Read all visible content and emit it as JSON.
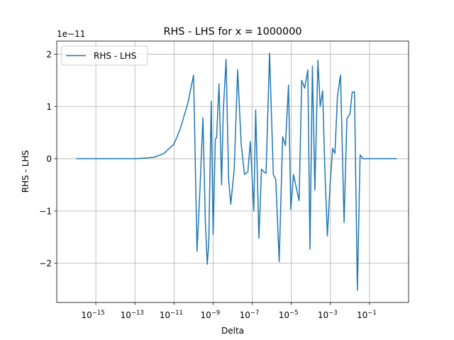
{
  "chart_data": {
    "type": "line",
    "title": "RHS - LHS for x = 1000000",
    "xlabel": "Delta",
    "ylabel": "RHS - LHS",
    "y_offset_label": "1e−11",
    "x_scale": "log",
    "xlim": [
      1e-17,
      10
    ],
    "ylim": [
      -2.75,
      2.25
    ],
    "y_multiplier": 1e-11,
    "grid": true,
    "legend_position": "upper-left",
    "series": [
      {
        "name": "RHS - LHS",
        "color": "#1f77b4",
        "x": [
          1e-16,
          1e-15,
          1e-14,
          1e-13,
          3e-13,
          1e-12,
          3e-12,
          1e-11,
          2e-11,
          5e-11,
          1e-10,
          1.5e-10,
          2e-10,
          3e-10,
          4e-10,
          5e-10,
          6e-10,
          8e-10,
          1e-09,
          1.3e-09,
          1.5e-09,
          2e-09,
          2.7e-09,
          3.3e-09,
          4.6e-09,
          6.2e-09,
          8e-09,
          1.2e-08,
          1.8e-08,
          2.7e-08,
          4e-08,
          6e-08,
          8e-08,
          1.2e-07,
          1.5e-07,
          2.2e-07,
          3e-07,
          3.9e-07,
          5.1e-07,
          7.7e-07,
          1.2e-06,
          1.6e-06,
          2.4e-06,
          3.6e-06,
          5e-06,
          7.2e-06,
          9.4e-06,
          1.3e-05,
          1.9e-05,
          2.5e-05,
          3.4e-05,
          4.8e-05,
          7e-05,
          9e-05,
          0.00012,
          0.00016,
          0.00023,
          0.0003,
          0.0004,
          0.00052,
          0.0007,
          0.00096,
          0.0013,
          0.0017,
          0.0023,
          0.0033,
          0.005,
          0.007,
          0.01,
          0.013,
          0.017,
          0.024,
          0.033,
          0.047,
          0.067,
          0.1,
          0.15,
          0.2,
          0.3,
          0.5,
          0.7,
          1.1,
          1.6,
          2.5
        ],
        "y": [
          0,
          0,
          0,
          0,
          0.01,
          0.03,
          0.1,
          0.28,
          0.55,
          1.05,
          1.6,
          -1.77,
          -0.8,
          0.78,
          -1.2,
          -2.02,
          -1.6,
          1.1,
          -1.45,
          0.38,
          0.4,
          1.43,
          -0.5,
          0.9,
          1.9,
          -0.4,
          -0.87,
          -0.2,
          1.7,
          0.3,
          -0.3,
          -0.25,
          0.33,
          -1.0,
          0.93,
          -1.52,
          -0.2,
          -0.25,
          -0.28,
          2.02,
          -0.3,
          -0.4,
          -1.97,
          0.42,
          0.25,
          1.41,
          -0.97,
          -0.3,
          -0.6,
          -0.8,
          1.5,
          1.35,
          1.7,
          -1.73,
          1.77,
          -0.6,
          1.88,
          1.0,
          1.3,
          -0.2,
          -1.48,
          -0.5,
          0.2,
          0.1,
          1.2,
          1.6,
          -1.22,
          0.77,
          0.85,
          1.27,
          1.28,
          -2.52,
          0.07,
          0.0,
          0.0,
          0.0,
          0.0,
          0.0,
          0.0,
          0.0,
          0.0,
          0.0,
          0.0,
          0.0
        ]
      }
    ],
    "x_ticks": [
      {
        "base": "10",
        "exp": "−15",
        "value": 1e-15
      },
      {
        "base": "10",
        "exp": "−13",
        "value": 1e-13
      },
      {
        "base": "10",
        "exp": "−11",
        "value": 1e-11
      },
      {
        "base": "10",
        "exp": "−9",
        "value": 1e-09
      },
      {
        "base": "10",
        "exp": "−7",
        "value": 1e-07
      },
      {
        "base": "10",
        "exp": "−5",
        "value": 1e-05
      },
      {
        "base": "10",
        "exp": "−3",
        "value": 0.001
      },
      {
        "base": "10",
        "exp": "−1",
        "value": 0.1
      }
    ],
    "y_ticks": [
      {
        "label": "−2",
        "value": -2
      },
      {
        "label": "−1",
        "value": -1
      },
      {
        "label": "0",
        "value": 0
      },
      {
        "label": "1",
        "value": 1
      },
      {
        "label": "2",
        "value": 2
      }
    ]
  }
}
